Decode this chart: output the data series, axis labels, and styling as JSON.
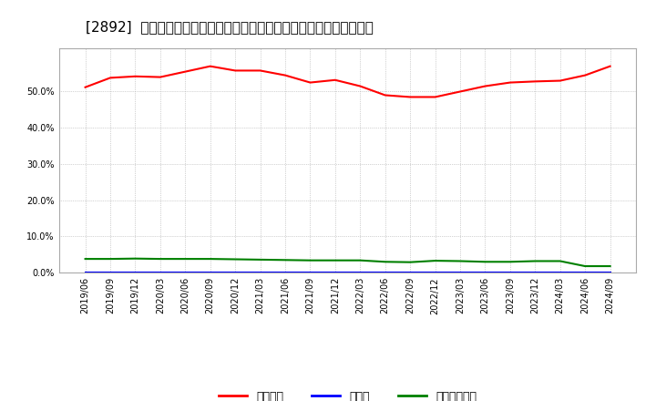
{
  "title": "[2892]  自己資本、のれん、繰延税金資産の総資産に対する比率の推移",
  "x_labels": [
    "2019/06",
    "2019/09",
    "2019/12",
    "2020/03",
    "2020/06",
    "2020/09",
    "2020/12",
    "2021/03",
    "2021/06",
    "2021/09",
    "2021/12",
    "2022/03",
    "2022/06",
    "2022/09",
    "2022/12",
    "2023/03",
    "2023/06",
    "2023/09",
    "2023/12",
    "2024/03",
    "2024/06",
    "2024/09"
  ],
  "equity": [
    51.2,
    53.8,
    54.2,
    54.0,
    55.5,
    57.0,
    55.8,
    55.8,
    54.5,
    52.5,
    53.2,
    51.5,
    49.0,
    48.5,
    48.5,
    50.0,
    51.5,
    52.5,
    52.8,
    53.0,
    54.5,
    57.0
  ],
  "noren": [
    0.0,
    0.0,
    0.0,
    0.0,
    0.0,
    0.0,
    0.0,
    0.0,
    0.0,
    0.0,
    0.0,
    0.0,
    0.0,
    0.0,
    0.0,
    0.0,
    0.0,
    0.0,
    0.0,
    0.0,
    0.0,
    0.0
  ],
  "deferred_tax": [
    3.8,
    3.8,
    3.9,
    3.8,
    3.8,
    3.8,
    3.7,
    3.6,
    3.5,
    3.4,
    3.4,
    3.4,
    3.0,
    2.9,
    3.3,
    3.2,
    3.0,
    3.0,
    3.2,
    3.2,
    1.8,
    1.8
  ],
  "equity_color": "#ff0000",
  "noren_color": "#0000ff",
  "deferred_tax_color": "#008000",
  "background_color": "#ffffff",
  "plot_bg_color": "#ffffff",
  "grid_color": "#aaaaaa",
  "ylim": [
    0,
    62
  ],
  "yticks": [
    0.0,
    10.0,
    20.0,
    30.0,
    40.0,
    50.0
  ],
  "legend_labels": [
    "自己資本",
    "のれん",
    "繰延税金資産"
  ],
  "title_fontsize": 11,
  "tick_fontsize": 7,
  "legend_fontsize": 9,
  "line_width": 1.5
}
